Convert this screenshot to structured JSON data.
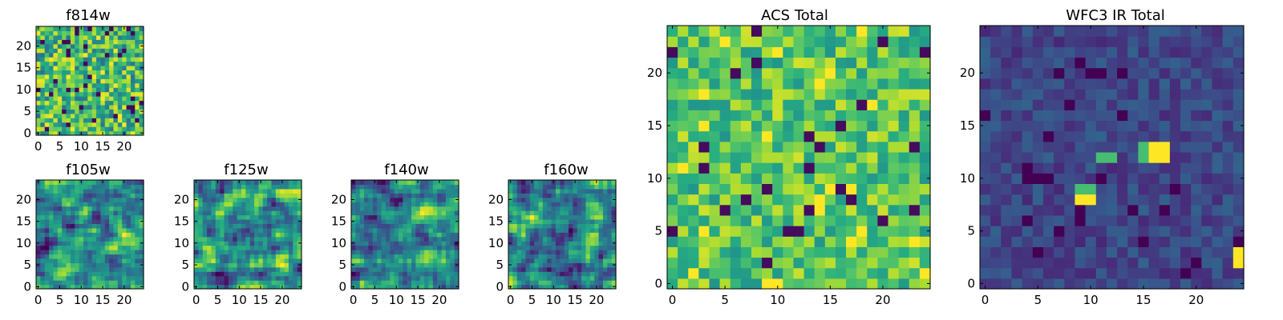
{
  "figure": {
    "panels": [
      {
        "title": "f814w"
      },
      {
        "title": "f105w"
      },
      {
        "title": "f125w"
      },
      {
        "title": "f140w"
      },
      {
        "title": "f160w"
      },
      {
        "title": "ACS Total"
      },
      {
        "title": "WFC3 IR Total"
      }
    ]
  },
  "chart_data": [
    {
      "type": "heatmap",
      "title": "f814w",
      "grid_size": 25,
      "xlim": [
        -0.5,
        24.5
      ],
      "ylim": [
        -0.5,
        24.5
      ],
      "xticks": [
        0,
        5,
        10,
        15,
        20
      ],
      "yticks": [
        0,
        5,
        10,
        15,
        20
      ],
      "colormap": "viridis",
      "pattern": "pixel-noise",
      "seed": 814
    },
    {
      "type": "heatmap",
      "title": "f105w",
      "grid_size": 25,
      "xlim": [
        -0.5,
        24.5
      ],
      "ylim": [
        -0.5,
        24.5
      ],
      "xticks": [
        0,
        5,
        10,
        15,
        20
      ],
      "yticks": [
        0,
        5,
        10,
        15,
        20
      ],
      "colormap": "viridis",
      "pattern": "smooth-noise",
      "seed": 105
    },
    {
      "type": "heatmap",
      "title": "f125w",
      "grid_size": 25,
      "xlim": [
        -0.5,
        24.5
      ],
      "ylim": [
        -0.5,
        24.5
      ],
      "xticks": [
        0,
        5,
        10,
        15,
        20
      ],
      "yticks": [
        0,
        5,
        10,
        15,
        20
      ],
      "colormap": "viridis",
      "pattern": "smooth-noise",
      "seed": 125
    },
    {
      "type": "heatmap",
      "title": "f140w",
      "grid_size": 25,
      "xlim": [
        -0.5,
        24.5
      ],
      "ylim": [
        -0.5,
        24.5
      ],
      "xticks": [
        0,
        5,
        10,
        15,
        20
      ],
      "yticks": [
        0,
        5,
        10,
        15,
        20
      ],
      "colormap": "viridis",
      "pattern": "smooth-noise",
      "seed": 140
    },
    {
      "type": "heatmap",
      "title": "f160w",
      "grid_size": 25,
      "xlim": [
        -0.5,
        24.5
      ],
      "ylim": [
        -0.5,
        24.5
      ],
      "xticks": [
        0,
        5,
        10,
        15,
        20
      ],
      "yticks": [
        0,
        5,
        10,
        15,
        20
      ],
      "colormap": "viridis",
      "pattern": "smooth-noise",
      "seed": 160
    },
    {
      "type": "heatmap",
      "title": "ACS Total",
      "grid_size": 25,
      "xlim": [
        -0.5,
        24.5
      ],
      "ylim": [
        -0.5,
        24.5
      ],
      "xticks": [
        0,
        5,
        10,
        15,
        20
      ],
      "yticks": [
        0,
        5,
        10,
        15,
        20
      ],
      "colormap": "viridis",
      "pattern": "pixel-noise-bright",
      "seed": 7
    },
    {
      "type": "heatmap",
      "title": "WFC3 IR Total",
      "grid_size": 25,
      "xlim": [
        -0.5,
        24.5
      ],
      "ylim": [
        -0.5,
        24.5
      ],
      "xticks": [
        0,
        5,
        10,
        15,
        20
      ],
      "yticks": [
        0,
        5,
        10,
        15,
        20
      ],
      "colormap": "viridis",
      "pattern": "dark-with-sources",
      "seed": 33,
      "bright_pixels": [
        [
          16,
          12
        ],
        [
          17,
          12
        ],
        [
          16,
          13
        ],
        [
          17,
          13
        ],
        [
          9,
          8
        ],
        [
          10,
          8
        ],
        [
          24,
          2
        ],
        [
          24,
          3
        ]
      ],
      "medium_pixels": [
        [
          15,
          12
        ],
        [
          15,
          13
        ],
        [
          12,
          12
        ],
        [
          9,
          9
        ],
        [
          10,
          9
        ],
        [
          11,
          12
        ]
      ]
    }
  ]
}
